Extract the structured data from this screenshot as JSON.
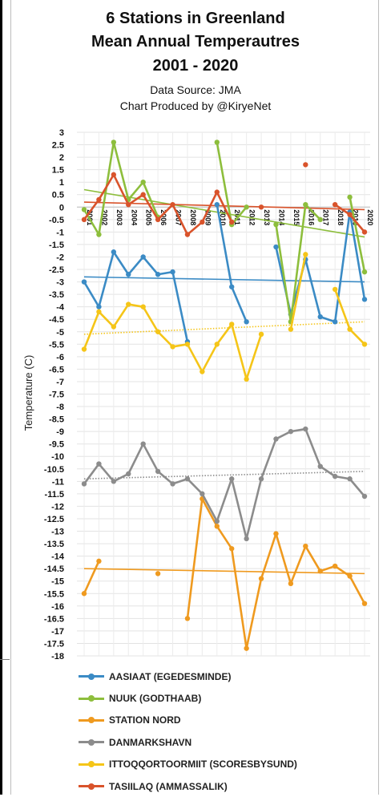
{
  "header": {
    "title_line1": "6 Stations in Greenland",
    "title_line2": "Mean Annual Temperautres",
    "title_line3": "2001 - 2020",
    "source": "Data Source: JMA",
    "producer": "Chart Produced by @KiryeNet"
  },
  "chart_data": {
    "type": "line",
    "ylabel": "Temperature (C)",
    "ylim": [
      -18,
      3
    ],
    "ytick_step": 0.5,
    "grid": true,
    "legend_position": "bottom",
    "categories": [
      "2001",
      "2002",
      "2003",
      "2004",
      "2005",
      "2006",
      "2007",
      "2008",
      "2009",
      "2010",
      "2011",
      "2012",
      "2013",
      "2014",
      "2015",
      "2016",
      "2017",
      "2018",
      "2019",
      "2020"
    ],
    "series": [
      {
        "name": "AASIAAT (EGEDESMINDE)",
        "color": "#3b8bc5",
        "values": [
          -3.0,
          -4.0,
          -1.8,
          -2.7,
          -2.0,
          -2.7,
          -2.6,
          -5.4,
          null,
          0.1,
          -3.2,
          -4.6,
          null,
          -1.6,
          -4.3,
          -2.1,
          -4.4,
          -4.6,
          -0.2,
          -3.7
        ],
        "trend": {
          "start": -2.8,
          "end": -3.0,
          "style": "solid"
        }
      },
      {
        "name": "NUUK (GODTHAAB)",
        "color": "#8dbe3c",
        "values": [
          -0.1,
          -1.1,
          2.6,
          0.3,
          1.0,
          -0.4,
          null,
          null,
          null,
          2.6,
          -0.7,
          0.0,
          null,
          -0.7,
          -4.6,
          0.1,
          -0.5,
          null,
          0.4,
          -2.6
        ],
        "trend": {
          "start": 0.7,
          "end": -1.2,
          "style": "solid"
        }
      },
      {
        "name": "STATION NORD",
        "color": "#ef9a1f",
        "values": [
          -15.5,
          -14.2,
          null,
          null,
          null,
          -14.7,
          null,
          -16.5,
          -11.7,
          -12.8,
          -13.7,
          -17.7,
          -14.9,
          -13.1,
          -15.1,
          -13.6,
          -14.6,
          -14.4,
          -14.8,
          -15.9
        ],
        "trend": {
          "start": -14.5,
          "end": -14.7,
          "style": "solid"
        }
      },
      {
        "name": "DANMARKSHAVN",
        "color": "#8c8c8c",
        "values": [
          -11.1,
          -10.3,
          -11.0,
          -10.7,
          -9.5,
          -10.6,
          -11.1,
          -10.9,
          -11.5,
          -12.6,
          -10.9,
          -13.3,
          -10.9,
          -9.3,
          -9.0,
          -8.9,
          -10.4,
          -10.8,
          -10.9,
          -11.6
        ],
        "trend": {
          "start": -10.9,
          "end": -10.6,
          "style": "dotted"
        }
      },
      {
        "name": "ITTOQQORTOORMIIT (SCORESBYSUND)",
        "color": "#f5c518",
        "values": [
          -5.7,
          -4.2,
          -4.8,
          -3.9,
          -4.0,
          -5.0,
          -5.6,
          -5.5,
          -6.6,
          -5.5,
          -4.7,
          -6.9,
          -5.1,
          null,
          -4.9,
          -1.9,
          null,
          -3.3,
          -4.9,
          -5.5
        ],
        "trend": {
          "start": -5.1,
          "end": -4.6,
          "style": "dotted"
        }
      },
      {
        "name": "TASIILAQ (AMMASSALIK)",
        "color": "#d9532b",
        "values": [
          -0.5,
          0.3,
          1.3,
          0.1,
          0.5,
          -0.5,
          0.1,
          -1.1,
          -0.6,
          0.6,
          -0.6,
          null,
          0.0,
          null,
          null,
          1.7,
          null,
          0.1,
          -0.3,
          -1.0
        ],
        "trend": {
          "start": 0.2,
          "end": -0.1,
          "style": "solid"
        }
      }
    ]
  }
}
